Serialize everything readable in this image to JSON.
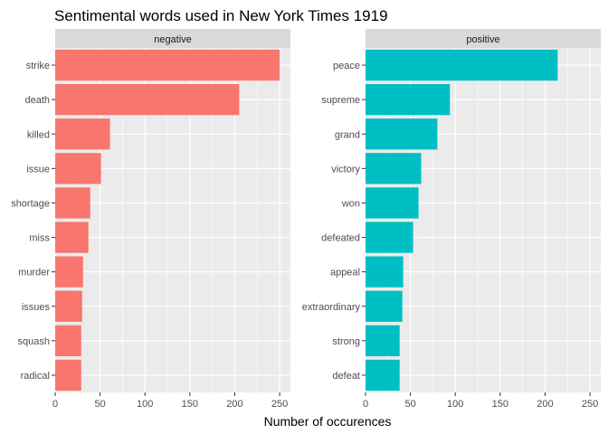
{
  "chart_data": {
    "type": "bar",
    "orientation": "horizontal",
    "title": "Sentimental words used in New York Times 1919",
    "xlabel": "Number of occurences",
    "ylabel": "",
    "xlim": [
      0,
      262
    ],
    "xticks": [
      0,
      50,
      100,
      150,
      200,
      250
    ],
    "grid": true,
    "colors": {
      "panel_bg": "#ebebeb",
      "strip_bg": "#d9d9d9",
      "grid": "#ffffff",
      "negative": "#f8766d",
      "positive": "#00bfc4"
    },
    "panels": [
      {
        "name": "negative",
        "color": "#f8766d",
        "categories": [
          "strike",
          "death",
          "killed",
          "issue",
          "shortage",
          "miss",
          "murder",
          "issues",
          "squash",
          "radical"
        ],
        "values": [
          250,
          205,
          61,
          51,
          39,
          37,
          31,
          30,
          29,
          29
        ]
      },
      {
        "name": "positive",
        "color": "#00bfc4",
        "categories": [
          "peace",
          "supreme",
          "grand",
          "victory",
          "won",
          "defeated",
          "appeal",
          "extraordinary",
          "strong",
          "defeat"
        ],
        "values": [
          214,
          94,
          80,
          62,
          59,
          53,
          42,
          41,
          38,
          38
        ]
      }
    ]
  }
}
